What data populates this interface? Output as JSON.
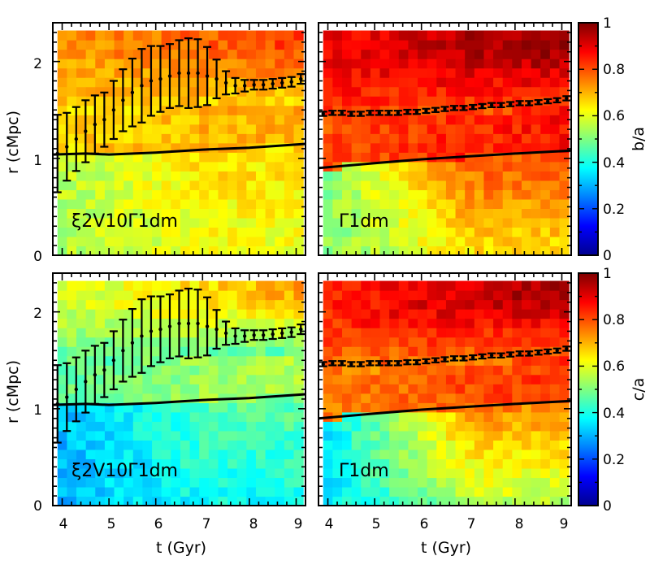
{
  "chart_data": {
    "type": "heatmap",
    "x_axis": {
      "label": "t (Gyr)",
      "range": [
        3.8,
        9.2
      ],
      "ticks": [
        "4",
        "5",
        "6",
        "7",
        "8",
        "9"
      ]
    },
    "y_axis": {
      "label": "r (cMpc)",
      "range": [
        0,
        2.4
      ],
      "ticks": [
        "0",
        "1",
        "2"
      ]
    },
    "rows": [
      {
        "colorbar": {
          "label": "b/a",
          "range": [
            0,
            1
          ],
          "ticks": [
            "0",
            "0.2",
            "0.4",
            "0.6",
            "0.8",
            "1"
          ]
        },
        "panels": [
          {
            "label": "ξ2V10Γ1dm",
            "base_value": 0.66,
            "low_r_value": 0.55,
            "outer_value": 0.82,
            "solid_line": {
              "t": [
                3.8,
                4.5,
                5.0,
                6.0,
                7.0,
                8.0,
                9.2
              ],
              "r": [
                1.04,
                1.05,
                1.04,
                1.06,
                1.09,
                1.11,
                1.15
              ]
            },
            "errorbars": {
              "t": [
                3.9,
                4.1,
                4.3,
                4.5,
                4.7,
                4.9,
                5.1,
                5.3,
                5.5,
                5.7,
                5.9,
                6.1,
                6.3,
                6.5,
                6.7,
                6.9,
                7.1,
                7.3,
                7.5,
                7.7,
                7.9,
                8.1,
                8.3,
                8.5,
                8.7,
                8.9,
                9.1
              ],
              "r": [
                1.05,
                1.12,
                1.2,
                1.28,
                1.35,
                1.4,
                1.5,
                1.6,
                1.68,
                1.75,
                1.8,
                1.82,
                1.85,
                1.88,
                1.88,
                1.88,
                1.85,
                1.82,
                1.78,
                1.75,
                1.75,
                1.76,
                1.76,
                1.77,
                1.78,
                1.79,
                1.82
              ],
              "err": [
                0.4,
                0.35,
                0.33,
                0.32,
                0.3,
                0.28,
                0.3,
                0.32,
                0.35,
                0.38,
                0.36,
                0.34,
                0.33,
                0.34,
                0.36,
                0.35,
                0.3,
                0.2,
                0.12,
                0.08,
                0.06,
                0.05,
                0.05,
                0.05,
                0.05,
                0.05,
                0.05
              ]
            }
          },
          {
            "label": "Γ1dm",
            "base_value": 0.8,
            "low_r_value": 0.5,
            "outer_value": 0.99,
            "solid_line": {
              "t": [
                3.8,
                5.0,
                6.0,
                7.0,
                8.0,
                9.2
              ],
              "r": [
                0.9,
                0.95,
                0.99,
                1.02,
                1.05,
                1.08
              ]
            },
            "errorbars": {
              "t": [
                3.9,
                4.1,
                4.3,
                4.5,
                4.7,
                4.9,
                5.1,
                5.3,
                5.5,
                5.7,
                5.9,
                6.1,
                6.3,
                6.5,
                6.7,
                6.9,
                7.1,
                7.3,
                7.5,
                7.7,
                7.9,
                8.1,
                8.3,
                8.5,
                8.7,
                8.9,
                9.1
              ],
              "r": [
                1.46,
                1.47,
                1.47,
                1.46,
                1.46,
                1.47,
                1.47,
                1.47,
                1.47,
                1.48,
                1.48,
                1.49,
                1.5,
                1.51,
                1.52,
                1.52,
                1.53,
                1.54,
                1.55,
                1.55,
                1.56,
                1.57,
                1.57,
                1.58,
                1.59,
                1.6,
                1.62
              ]
            }
          }
        ]
      },
      {
        "colorbar": {
          "label": "c/a",
          "range": [
            0,
            1
          ],
          "ticks": [
            "0",
            "0.2",
            "0.4",
            "0.6",
            "0.8",
            "1"
          ]
        },
        "panels": [
          {
            "label": "ξ2V10Γ1dm",
            "base_value": 0.47,
            "low_r_value": 0.3,
            "outer_value": 0.72,
            "solid_line": {
              "t": [
                3.8,
                4.5,
                5.0,
                6.0,
                7.0,
                8.0,
                9.2
              ],
              "r": [
                1.04,
                1.05,
                1.04,
                1.06,
                1.09,
                1.11,
                1.15
              ]
            },
            "errorbars": {
              "t": [
                3.9,
                4.1,
                4.3,
                4.5,
                4.7,
                4.9,
                5.1,
                5.3,
                5.5,
                5.7,
                5.9,
                6.1,
                6.3,
                6.5,
                6.7,
                6.9,
                7.1,
                7.3,
                7.5,
                7.7,
                7.9,
                8.1,
                8.3,
                8.5,
                8.7,
                8.9,
                9.1
              ],
              "r": [
                1.05,
                1.12,
                1.2,
                1.28,
                1.35,
                1.4,
                1.5,
                1.6,
                1.68,
                1.75,
                1.8,
                1.82,
                1.85,
                1.88,
                1.88,
                1.88,
                1.85,
                1.82,
                1.78,
                1.75,
                1.75,
                1.76,
                1.76,
                1.77,
                1.78,
                1.79,
                1.82
              ],
              "err": [
                0.4,
                0.35,
                0.33,
                0.32,
                0.3,
                0.28,
                0.3,
                0.32,
                0.35,
                0.38,
                0.36,
                0.34,
                0.33,
                0.34,
                0.36,
                0.35,
                0.3,
                0.2,
                0.12,
                0.08,
                0.06,
                0.05,
                0.05,
                0.05,
                0.05,
                0.05,
                0.05
              ]
            }
          },
          {
            "label": "Γ1dm",
            "base_value": 0.75,
            "low_r_value": 0.35,
            "outer_value": 0.98,
            "solid_line": {
              "t": [
                3.8,
                5.0,
                6.0,
                7.0,
                8.0,
                9.2
              ],
              "r": [
                0.9,
                0.95,
                0.99,
                1.02,
                1.05,
                1.08
              ]
            },
            "errorbars": {
              "t": [
                3.9,
                4.1,
                4.3,
                4.5,
                4.7,
                4.9,
                5.1,
                5.3,
                5.5,
                5.7,
                5.9,
                6.1,
                6.3,
                6.5,
                6.7,
                6.9,
                7.1,
                7.3,
                7.5,
                7.7,
                7.9,
                8.1,
                8.3,
                8.5,
                8.7,
                8.9,
                9.1
              ],
              "r": [
                1.46,
                1.47,
                1.47,
                1.46,
                1.46,
                1.47,
                1.47,
                1.47,
                1.47,
                1.48,
                1.48,
                1.49,
                1.5,
                1.51,
                1.52,
                1.52,
                1.53,
                1.54,
                1.55,
                1.55,
                1.56,
                1.57,
                1.57,
                1.58,
                1.59,
                1.6,
                1.62
              ]
            }
          }
        ]
      }
    ],
    "colormap": "jet"
  }
}
